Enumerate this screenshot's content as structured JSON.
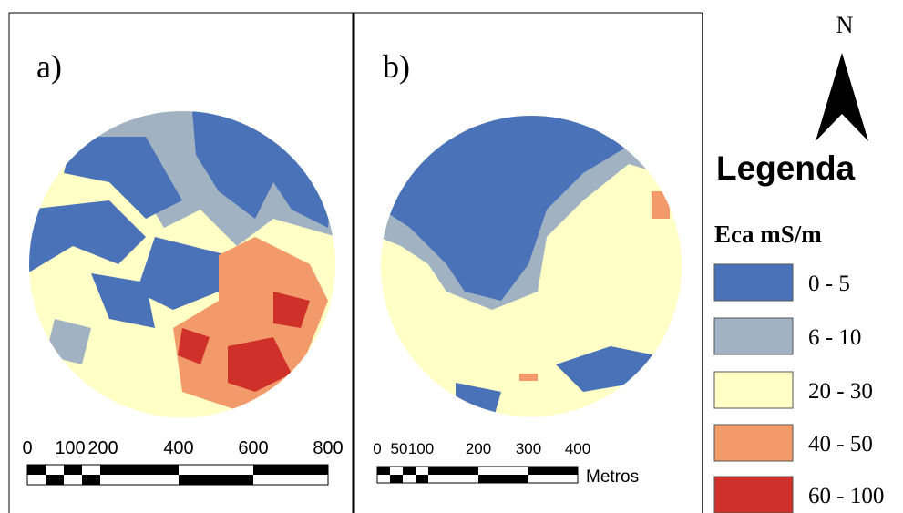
{
  "panels": [
    {
      "label": "a)",
      "scale_labels": [
        "0",
        "100",
        "200",
        "400",
        "600",
        "800"
      ]
    },
    {
      "label": "b)",
      "scale_labels": [
        "0",
        "50",
        "100",
        "200",
        "300",
        "400"
      ],
      "scale_unit": "Metros"
    }
  ],
  "north": "N",
  "legend": {
    "title": "Legenda",
    "subtitle": "Eca mS/m",
    "items": [
      {
        "label": "0 - 5",
        "color": "#4a72b8"
      },
      {
        "label": "6 - 10",
        "color": "#a1b3c2"
      },
      {
        "label": "20 - 30",
        "color": "#ffffc6"
      },
      {
        "label": "40 - 50",
        "color": "#f39a6b"
      },
      {
        "label": "60 - 100",
        "color": "#d0302a"
      }
    ]
  }
}
